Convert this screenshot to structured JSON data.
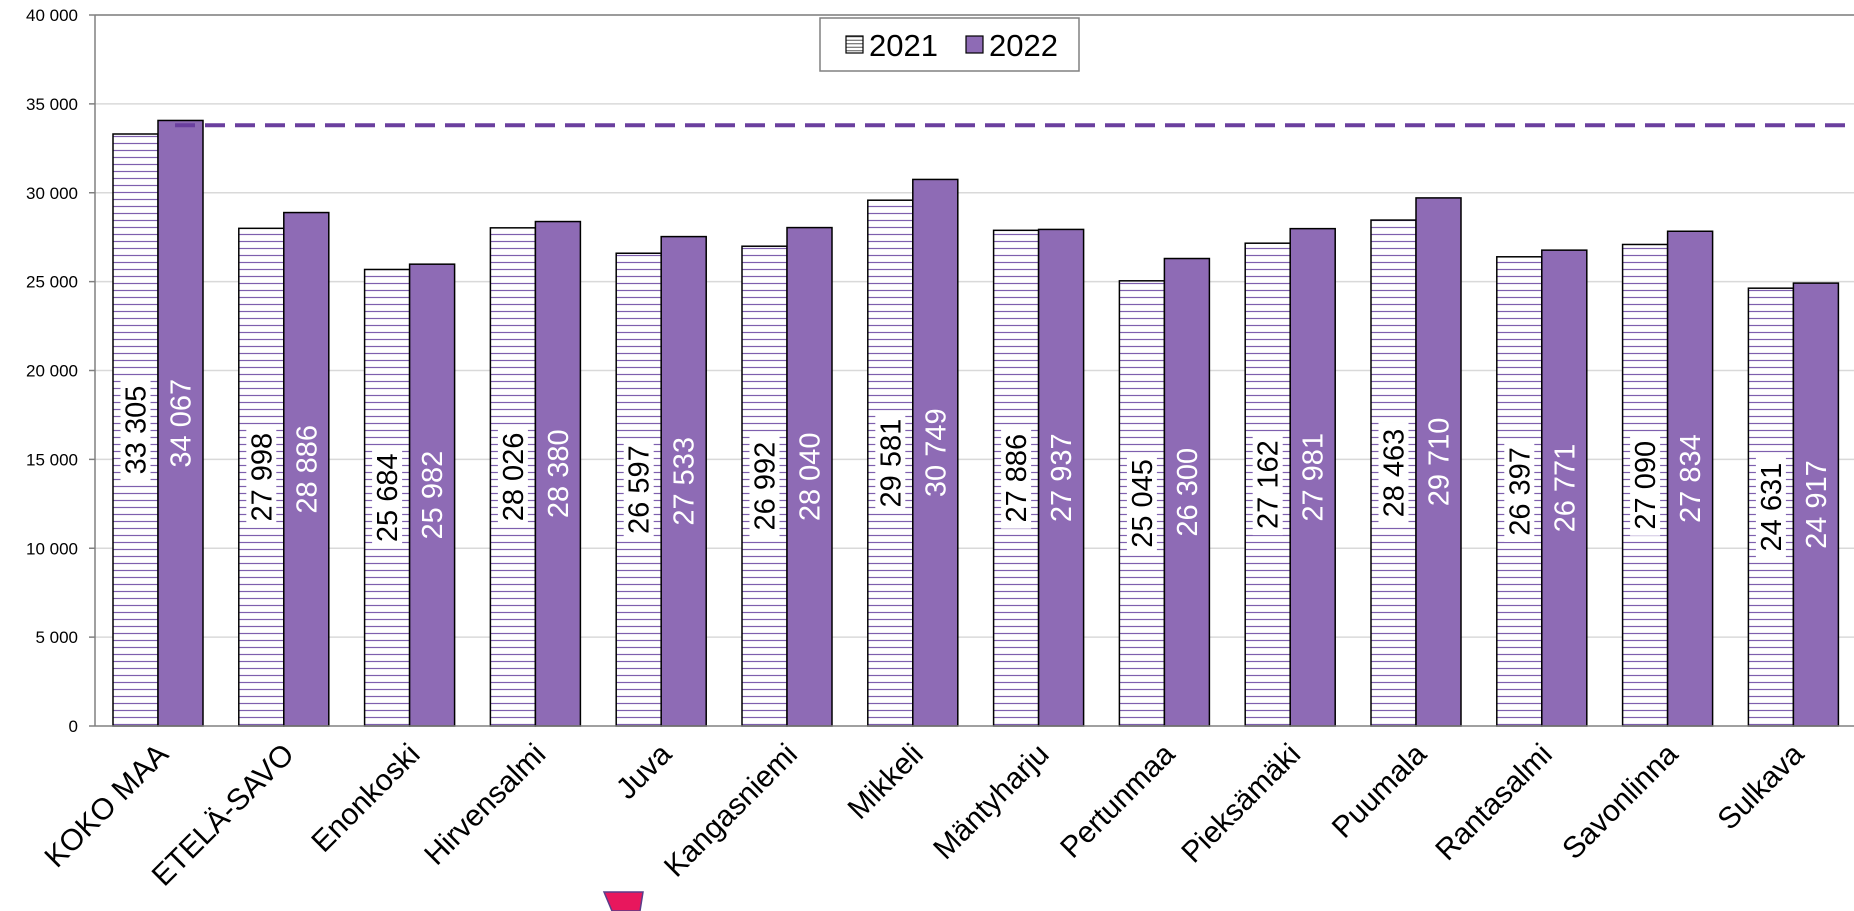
{
  "chart_data": {
    "type": "bar",
    "categories": [
      "KOKO MAA",
      "ETELÄ-SAVO",
      "Enonkoski",
      "Hirvensalmi",
      "Juva",
      "Kangasniemi",
      "Mikkeli",
      "Mäntyharju",
      "Pertunmaa",
      "Pieksämäki",
      "Puumala",
      "Rantasalmi",
      "Savonlinna",
      "Sulkava"
    ],
    "series": [
      {
        "name": "2021",
        "values": [
          33305,
          27998,
          25684,
          28026,
          26597,
          26992,
          29581,
          27886,
          25045,
          27162,
          28463,
          26397,
          27090,
          24631
        ],
        "labels": [
          "33 305",
          "27 998",
          "25 684",
          "28 026",
          "26 597",
          "26 992",
          "29 581",
          "27 886",
          "25 045",
          "27 162",
          "28 463",
          "26 397",
          "27 090",
          "24 631"
        ],
        "fill": "#ffffff",
        "hatch_color": "#7e5fae",
        "label_color": "#000000"
      },
      {
        "name": "2022",
        "values": [
          34067,
          28886,
          25982,
          28380,
          27533,
          28040,
          30749,
          27937,
          26300,
          27981,
          29710,
          26771,
          27834,
          24917
        ],
        "labels": [
          "34 067",
          "28 886",
          "25 982",
          "28 380",
          "27 533",
          "28 040",
          "30 749",
          "27 937",
          "26 300",
          "27 981",
          "29 710",
          "26 771",
          "27 834",
          "24 917"
        ],
        "fill": "#8e6bb5",
        "label_color": "#ffffff"
      }
    ],
    "yticks": [
      0,
      5000,
      10000,
      15000,
      20000,
      25000,
      30000,
      35000,
      40000
    ],
    "ytick_labels": [
      "0",
      "5 000",
      "10 000",
      "15 000",
      "20 000",
      "25 000",
      "30 000",
      "35 000",
      "40 000"
    ],
    "ylim": [
      0,
      40000
    ],
    "reference_line": {
      "value": 33800,
      "color": "#6a3f9e",
      "style": "dashed"
    },
    "grid": true,
    "legend_position": "top-center",
    "title": "",
    "xlabel": "",
    "ylabel": ""
  },
  "colors": {
    "axis": "#808080",
    "grid": "#d9d9d9",
    "bar_outline": "#000000",
    "marker": "#e8175d"
  }
}
